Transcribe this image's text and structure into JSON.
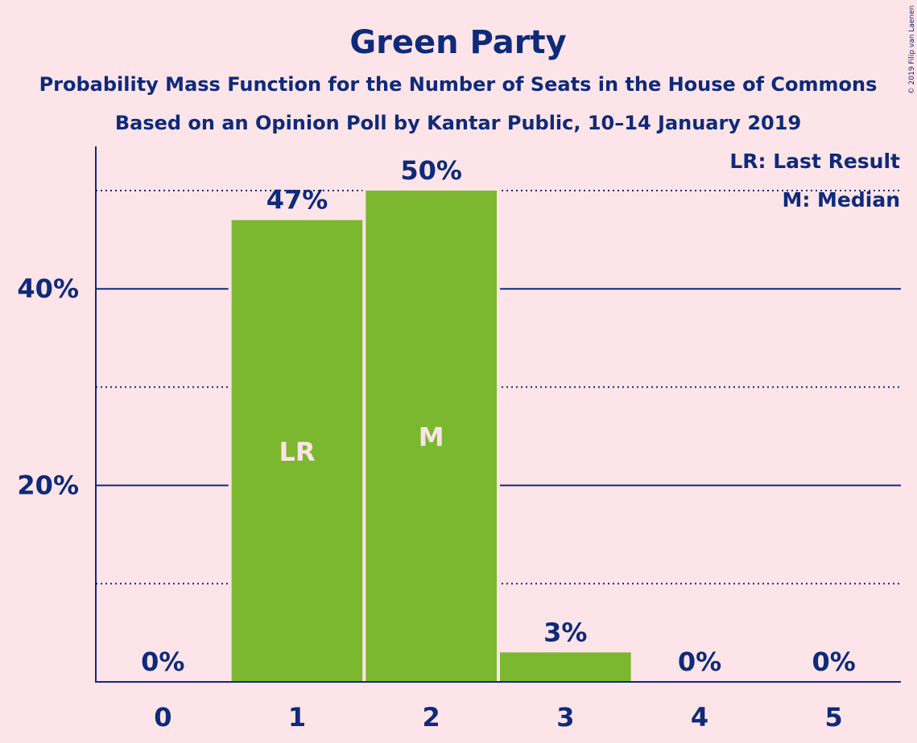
{
  "chart_data": {
    "type": "bar",
    "title": "Green Party",
    "subtitle": "Probability Mass Function for the Number of Seats in the House of Commons",
    "subtitle2": "Based on an Opinion Poll by Kantar Public, 10–14 January 2019",
    "copyright": "© 2019 Filip van Laenen",
    "categories": [
      "0",
      "1",
      "2",
      "3",
      "4",
      "5"
    ],
    "values": [
      0,
      47,
      50,
      3,
      0,
      0
    ],
    "value_labels": [
      "0%",
      "47%",
      "50%",
      "3%",
      "0%",
      "0%"
    ],
    "bar_marks": [
      "",
      "LR",
      "M",
      "",
      "",
      ""
    ],
    "ylim": [
      0,
      54.5
    ],
    "yticks": [
      20,
      40
    ],
    "ytick_labels": [
      "20%",
      "40%"
    ],
    "dotted_gridlines": [
      10,
      30,
      50
    ],
    "legend": [
      "LR: Last Result",
      "M: Median"
    ],
    "legend_position": "top-right",
    "colors": {
      "bar": "#7cb82f",
      "text": "#0e2a7a",
      "background": "#fde4e8",
      "mark_text": "#fde4e8"
    }
  }
}
